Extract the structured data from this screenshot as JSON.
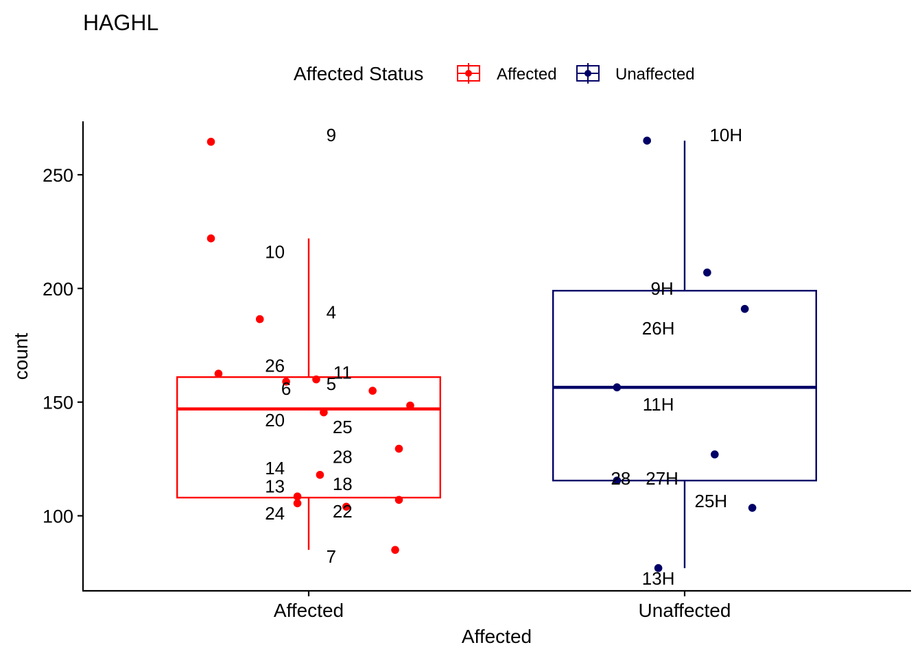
{
  "chart_data": {
    "type": "boxplot",
    "title": "HAGHL",
    "xlabel": "Affected",
    "ylabel": "count",
    "ylim": [
      67,
      273.5
    ],
    "yticks": [
      100,
      150,
      200,
      250
    ],
    "categories": [
      "Affected",
      "Unaffected"
    ],
    "legend": {
      "title": "Affected Status",
      "position": "top",
      "entries": [
        {
          "label": "Affected",
          "color": "#ff0000"
        },
        {
          "label": "Unaffected",
          "color": "#000066"
        }
      ]
    },
    "boxes": [
      {
        "category": "Affected",
        "color": "#ff0000",
        "whisker_low": 85,
        "q1": 108,
        "median": 147,
        "q3": 161,
        "whisker_high": 222
      },
      {
        "category": "Unaffected",
        "color": "#000066",
        "whisker_low": 77,
        "q1": 115.5,
        "median": 156.5,
        "q3": 199,
        "whisker_high": 265
      }
    ],
    "points": [
      {
        "category": "Affected",
        "jitter": -0.26,
        "value": 264.5,
        "label": "9",
        "label_dx": 0.06,
        "label_value": 267.5
      },
      {
        "category": "Affected",
        "jitter": -0.26,
        "value": 222,
        "label": "10",
        "label_dx": -0.09,
        "label_value": 216
      },
      {
        "category": "Affected",
        "jitter": -0.13,
        "value": 186.5,
        "label": "4",
        "label_dx": 0.06,
        "label_value": 189.5
      },
      {
        "category": "Affected",
        "jitter": -0.24,
        "value": 162.5,
        "label": "26",
        "label_dx": -0.09,
        "label_value": 166
      },
      {
        "category": "Affected",
        "jitter": 0.02,
        "value": 160,
        "label": "11",
        "label_dx": 0.09,
        "label_value": 163
      },
      {
        "category": "Affected",
        "jitter": -0.06,
        "value": 159,
        "label": "6",
        "label_dx": -0.06,
        "label_value": 156
      },
      {
        "category": "Affected",
        "jitter": 0.17,
        "value": 155,
        "label": "5",
        "label_dx": 0.06,
        "label_value": 158
      },
      {
        "category": "Affected",
        "jitter": 0.27,
        "value": 148.5,
        "label": "20",
        "label_dx": -0.09,
        "label_value": 142
      },
      {
        "category": "Affected",
        "jitter": 0.04,
        "value": 145.5,
        "label": "25",
        "label_dx": 0.09,
        "label_value": 139
      },
      {
        "category": "Affected",
        "jitter": 0.24,
        "value": 129.5,
        "label": "28",
        "label_dx": 0.09,
        "label_value": 126
      },
      {
        "category": "Affected",
        "jitter": 0.03,
        "value": 118,
        "label": "14",
        "label_dx": -0.09,
        "label_value": 121
      },
      {
        "category": "Affected",
        "jitter": -0.03,
        "value": 108.5,
        "label": "13",
        "label_dx": -0.09,
        "label_value": 113
      },
      {
        "category": "Affected",
        "jitter": 0.24,
        "value": 107,
        "label": "18",
        "label_dx": 0.09,
        "label_value": 114
      },
      {
        "category": "Affected",
        "jitter": -0.03,
        "value": 105.5,
        "label": "24",
        "label_dx": -0.09,
        "label_value": 101
      },
      {
        "category": "Affected",
        "jitter": 0.1,
        "value": 104,
        "label": "22",
        "label_dx": 0.09,
        "label_value": 102
      },
      {
        "category": "Affected",
        "jitter": 0.23,
        "value": 85,
        "label": "7",
        "label_dx": 0.06,
        "label_value": 82
      },
      {
        "category": "Unaffected",
        "jitter": -0.1,
        "value": 265,
        "label": "10H",
        "label_dx": 0.11,
        "label_value": 267.5
      },
      {
        "category": "Unaffected",
        "jitter": 0.06,
        "value": 207,
        "label": "9H",
        "label_dx": -0.06,
        "label_value": 200
      },
      {
        "category": "Unaffected",
        "jitter": 0.16,
        "value": 191,
        "label": "26H",
        "label_dx": -0.07,
        "label_value": 182.5
      },
      {
        "category": "Unaffected",
        "jitter": -0.18,
        "value": 156.5,
        "label": "11H",
        "label_dx": -0.07,
        "label_value": 149
      },
      {
        "category": "Unaffected",
        "jitter": 0.08,
        "value": 127,
        "label": "27H",
        "label_dx": -0.06,
        "label_value": 116.5
      },
      {
        "category": "Unaffected",
        "jitter": -0.18,
        "value": 115.5,
        "label": "28",
        "label_dx": -0.17,
        "label_value": 116.5
      },
      {
        "category": "Unaffected",
        "jitter": 0.18,
        "value": 103.5,
        "label": "25H",
        "label_dx": 0.07,
        "label_value": 106.5
      },
      {
        "category": "Unaffected",
        "jitter": -0.07,
        "value": 77,
        "label": "13H",
        "label_dx": -0.07,
        "label_value": 72.5
      }
    ]
  }
}
